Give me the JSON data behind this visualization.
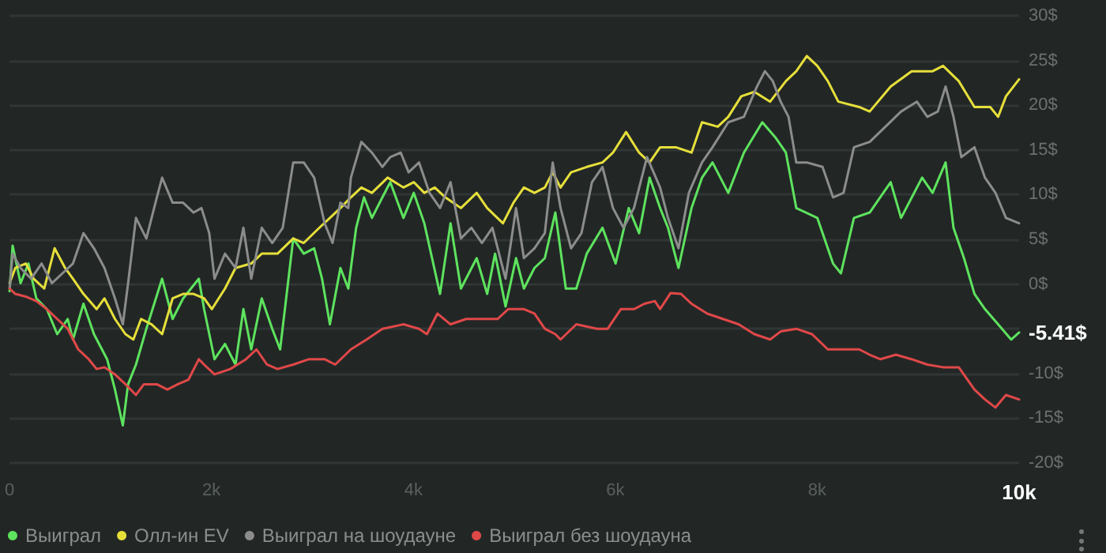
{
  "chart_data": {
    "type": "line",
    "marker": "none",
    "line_style": "solid",
    "grid": "y",
    "legend": "bottom left",
    "xlim": [
      0,
      10000
    ],
    "xticks": [
      0,
      {
        "value": 2000,
        "label": "2k"
      },
      {
        "value": 4000,
        "label": "4k"
      },
      {
        "value": 6000,
        "label": "6k"
      },
      {
        "value": 8000,
        "label": "8k"
      },
      {
        "value": 10000,
        "label": "10k"
      }
    ],
    "ylim": [
      -20,
      30
    ],
    "yticks": [
      {
        "value": -20,
        "label": "-20$"
      },
      {
        "value": -15,
        "label": "-15$"
      },
      {
        "value": -10,
        "label": "-10$"
      },
      {
        "value": -5,
        "label": null
      },
      {
        "value": 0,
        "label": "0$"
      },
      {
        "value": 5,
        "label": "5$"
      },
      {
        "value": 10,
        "label": "10$"
      },
      {
        "value": 15,
        "label": "15$"
      },
      {
        "value": 20,
        "label": "20$"
      },
      {
        "value": 25,
        "label": "25$"
      },
      {
        "value": 30,
        "label": "30$"
      }
    ],
    "annotations": [
      {
        "text": "-5.41$",
        "x": 10000,
        "y": -5.41
      }
    ],
    "series": [
      {
        "name": "Выиграл",
        "color": "#5ee35e",
        "x": [
          0,
          30,
          109,
          187,
          265,
          369,
          472,
          576,
          628,
          732,
          836,
          966,
          1044,
          1122,
          1174,
          1252,
          1355,
          1511,
          1615,
          1719,
          1875,
          1927,
          2030,
          2134,
          2238,
          2316,
          2394,
          2498,
          2602,
          2680,
          2810,
          2914,
          3017,
          3095,
          3173,
          3277,
          3355,
          3433,
          3511,
          3589,
          3693,
          3771,
          3901,
          4004,
          4108,
          4264,
          4368,
          4471,
          4627,
          4731,
          4809,
          4913,
          5017,
          5095,
          5199,
          5302,
          5406,
          5510,
          5614,
          5717,
          5873,
          6003,
          6133,
          6236,
          6340,
          6444,
          6522,
          6626,
          6755,
          6859,
          6963,
          7119,
          7274,
          7456,
          7586,
          7690,
          7793,
          8001,
          8157,
          8235,
          8364,
          8520,
          8728,
          8831,
          9039,
          9143,
          9272,
          9350,
          9454,
          9558,
          9662,
          9792,
          9921,
          10000
        ],
        "values": [
          -0.8,
          4.3,
          0.1,
          2.3,
          -1.6,
          -2.8,
          -5.6,
          -3.9,
          -6.2,
          -2.2,
          -5.6,
          -8.4,
          -11.8,
          -15.8,
          -11.2,
          -9.0,
          -5.0,
          0.6,
          -3.9,
          -1.6,
          0.6,
          -2.8,
          -8.4,
          -6.7,
          -9.0,
          -2.8,
          -7.3,
          -1.6,
          -5.0,
          -7.3,
          5.1,
          3.4,
          4.0,
          0.6,
          -4.5,
          1.8,
          -0.5,
          6.3,
          9.7,
          7.4,
          9.7,
          11.4,
          7.4,
          10.2,
          6.8,
          -1.1,
          6.8,
          -0.5,
          2.9,
          -1.1,
          3.4,
          -2.5,
          2.9,
          -0.5,
          1.8,
          2.9,
          8.0,
          -0.5,
          -0.5,
          3.4,
          6.3,
          2.3,
          8.5,
          5.7,
          11.9,
          8.5,
          6.3,
          1.8,
          8.5,
          11.9,
          13.6,
          10.2,
          14.7,
          18.1,
          16.4,
          14.7,
          8.5,
          7.4,
          2.3,
          1.2,
          7.4,
          8.0,
          11.4,
          7.4,
          11.9,
          10.2,
          13.6,
          6.3,
          2.9,
          -1.1,
          -2.8,
          -4.5,
          -6.2,
          -5.41
        ]
      },
      {
        "name": "Олл-ин EV",
        "color": "#e6df3a",
        "x": [
          0,
          57,
          161,
          239,
          343,
          446,
          550,
          628,
          732,
          862,
          940,
          1044,
          1148,
          1226,
          1303,
          1407,
          1511,
          1615,
          1719,
          1823,
          1927,
          2004,
          2134,
          2238,
          2394,
          2498,
          2654,
          2810,
          2914,
          3069,
          3173,
          3277,
          3381,
          3485,
          3589,
          3745,
          3901,
          4004,
          4108,
          4212,
          4316,
          4471,
          4627,
          4731,
          4887,
          4991,
          5095,
          5199,
          5302,
          5380,
          5458,
          5562,
          5717,
          5873,
          5977,
          6107,
          6236,
          6340,
          6444,
          6600,
          6755,
          6859,
          7015,
          7119,
          7248,
          7378,
          7534,
          7690,
          7793,
          7897,
          8001,
          8105,
          8209,
          8416,
          8520,
          8728,
          8935,
          9143,
          9247,
          9402,
          9558,
          9714,
          9792,
          9870,
          10000
        ],
        "values": [
          0.1,
          1.8,
          2.3,
          0.6,
          -0.5,
          4.0,
          1.8,
          0.6,
          -1.1,
          -2.8,
          -1.6,
          -3.9,
          -5.6,
          -6.2,
          -3.9,
          -4.5,
          -5.6,
          -1.6,
          -1.1,
          -1.1,
          -1.6,
          -2.8,
          -0.5,
          1.8,
          2.3,
          3.4,
          3.4,
          5.1,
          4.6,
          6.3,
          7.4,
          8.5,
          9.7,
          10.8,
          10.2,
          11.9,
          10.8,
          11.4,
          10.2,
          10.8,
          9.7,
          8.5,
          10.2,
          8.5,
          6.8,
          9.1,
          10.8,
          10.2,
          10.8,
          12.5,
          10.8,
          12.5,
          13.1,
          13.6,
          14.7,
          17.0,
          14.7,
          13.6,
          15.3,
          15.3,
          14.7,
          18.1,
          17.6,
          18.7,
          21.0,
          21.5,
          20.4,
          22.7,
          23.8,
          25.5,
          24.4,
          22.7,
          20.4,
          19.8,
          19.3,
          22.1,
          23.8,
          23.8,
          24.4,
          22.7,
          19.8,
          19.8,
          18.7,
          21.0,
          22.9
        ]
      },
      {
        "name": "Выиграл на шоудауне",
        "color": "#8c8c8c",
        "x": [
          0,
          31,
          109,
          213,
          317,
          420,
          524,
          628,
          732,
          836,
          940,
          1044,
          1122,
          1174,
          1252,
          1355,
          1459,
          1511,
          1615,
          1719,
          1823,
          1901,
          1978,
          2030,
          2134,
          2238,
          2316,
          2394,
          2498,
          2602,
          2706,
          2810,
          2914,
          3017,
          3121,
          3199,
          3277,
          3355,
          3381,
          3485,
          3589,
          3693,
          3771,
          3875,
          3953,
          4056,
          4160,
          4264,
          4368,
          4471,
          4575,
          4679,
          4783,
          4913,
          5017,
          5095,
          5199,
          5302,
          5380,
          5458,
          5562,
          5665,
          5769,
          5873,
          5977,
          6081,
          6185,
          6314,
          6444,
          6522,
          6626,
          6729,
          6859,
          6963,
          7119,
          7274,
          7404,
          7482,
          7560,
          7638,
          7716,
          7793,
          7897,
          8053,
          8157,
          8261,
          8364,
          8520,
          8676,
          8831,
          8987,
          9091,
          9195,
          9272,
          9350,
          9428,
          9558,
          9662,
          9766,
          9870,
          10000
        ],
        "values": [
          -0.5,
          3.4,
          1.8,
          0.6,
          2.3,
          0.1,
          1.2,
          2.3,
          5.7,
          4.0,
          1.8,
          -1.6,
          -4.5,
          0.1,
          7.4,
          5.1,
          9.7,
          11.9,
          9.1,
          9.1,
          8.0,
          8.5,
          5.7,
          0.6,
          3.4,
          1.8,
          6.3,
          0.6,
          6.3,
          4.6,
          6.3,
          13.6,
          13.6,
          11.9,
          6.8,
          4.6,
          9.1,
          8.5,
          11.9,
          15.9,
          14.7,
          13.1,
          14.2,
          14.7,
          12.5,
          13.6,
          10.2,
          8.5,
          11.4,
          5.1,
          6.3,
          4.6,
          6.3,
          0.6,
          8.5,
          2.9,
          4.0,
          5.7,
          13.6,
          8.5,
          4.0,
          5.7,
          11.4,
          13.1,
          8.5,
          6.3,
          8.5,
          14.2,
          10.8,
          7.4,
          4.0,
          10.2,
          13.6,
          15.3,
          18.1,
          18.7,
          22.1,
          23.8,
          22.7,
          20.4,
          18.7,
          13.6,
          13.6,
          13.1,
          9.7,
          10.2,
          15.3,
          15.9,
          17.6,
          19.3,
          20.4,
          18.7,
          19.3,
          22.1,
          18.7,
          14.2,
          15.3,
          11.9,
          10.2,
          7.4,
          6.8
        ]
      },
      {
        "name": "Выиграл без шоудауна",
        "color": "#e04848",
        "x": [
          0,
          57,
          161,
          265,
          369,
          472,
          576,
          680,
          784,
          862,
          940,
          1044,
          1148,
          1252,
          1330,
          1459,
          1563,
          1667,
          1771,
          1875,
          1927,
          2030,
          2186,
          2342,
          2446,
          2550,
          2654,
          2810,
          2966,
          3121,
          3225,
          3381,
          3537,
          3693,
          3901,
          4056,
          4134,
          4238,
          4368,
          4523,
          4679,
          4835,
          4939,
          5095,
          5199,
          5302,
          5406,
          5458,
          5614,
          5821,
          5925,
          6055,
          6185,
          6288,
          6392,
          6444,
          6548,
          6652,
          6755,
          6911,
          7067,
          7222,
          7378,
          7534,
          7638,
          7793,
          7949,
          8105,
          8261,
          8416,
          8520,
          8624,
          8780,
          8935,
          9091,
          9247,
          9402,
          9558,
          9662,
          9766,
          9870,
          10000
        ],
        "values": [
          -0.5,
          -1.1,
          -1.4,
          -1.9,
          -2.8,
          -3.9,
          -5.0,
          -7.3,
          -8.4,
          -9.5,
          -9.3,
          -10.1,
          -11.2,
          -12.4,
          -11.2,
          -11.2,
          -11.8,
          -11.2,
          -10.7,
          -8.4,
          -9.0,
          -10.1,
          -9.5,
          -8.4,
          -7.3,
          -9.0,
          -9.5,
          -9.0,
          -8.4,
          -8.4,
          -9.0,
          -7.3,
          -6.2,
          -5.0,
          -4.5,
          -5.0,
          -5.6,
          -3.3,
          -4.5,
          -3.9,
          -3.9,
          -3.9,
          -2.8,
          -2.8,
          -3.3,
          -5.0,
          -5.6,
          -6.2,
          -4.5,
          -5.0,
          -5.0,
          -2.8,
          -2.8,
          -2.2,
          -1.9,
          -2.8,
          -1.0,
          -1.1,
          -2.2,
          -3.3,
          -3.9,
          -4.5,
          -5.6,
          -6.2,
          -5.3,
          -5.0,
          -5.6,
          -7.3,
          -7.3,
          -7.3,
          -7.9,
          -8.4,
          -7.9,
          -8.4,
          -9.0,
          -9.3,
          -9.3,
          -11.8,
          -12.9,
          -13.8,
          -12.4,
          -12.9
        ]
      }
    ]
  }
}
